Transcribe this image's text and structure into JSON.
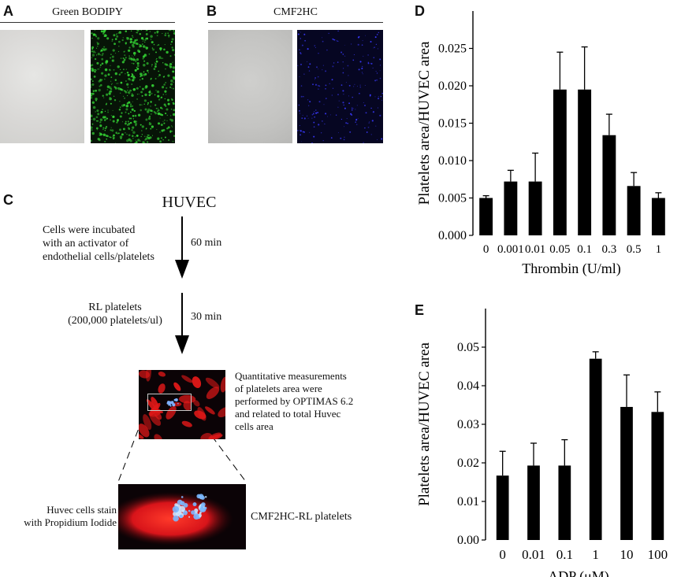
{
  "panels": {
    "A": {
      "letter": "A",
      "title": "Green BODIPY"
    },
    "B": {
      "letter": "B",
      "title": "CMF2HC"
    },
    "C": {
      "letter": "C"
    },
    "D": {
      "letter": "D"
    },
    "E": {
      "letter": "E"
    }
  },
  "flow": {
    "start": "HUVEC",
    "step1_text": [
      "Cells were incubated",
      "with an activator of",
      "endothelial cells/platelets"
    ],
    "step1_time": "60 min",
    "step2_text": [
      "RL platelets",
      "(200,000 platelets/ul)"
    ],
    "step2_time": "30 min",
    "measure_text": [
      "Quantitative measurements",
      "of platelets area were",
      "performed by OPTIMAS 6.2",
      "and related to total Huvec",
      "cells area"
    ],
    "left_label": [
      "Huvec cells stain",
      "with Propidium Iodide"
    ],
    "right_label": "CMF2HC-RL platelets"
  },
  "colors": {
    "bar": "#000000",
    "green_fluor": "#33cc33",
    "blue_fluor": "#3a3aff",
    "red_fluor": "#e01818"
  },
  "chart_data": [
    {
      "type": "bar",
      "panel": "D",
      "categories": [
        "0",
        "0.001",
        "0.01",
        "0.05",
        "0.1",
        "0.3",
        "0.5",
        "1"
      ],
      "values": [
        0.005,
        0.0072,
        0.0072,
        0.0195,
        0.0195,
        0.0134,
        0.0066,
        0.005
      ],
      "errors": [
        0.0003,
        0.0015,
        0.0038,
        0.005,
        0.0057,
        0.0028,
        0.0018,
        0.0007
      ],
      "yticks": [
        "0.000",
        "0.005",
        "0.010",
        "0.015",
        "0.020",
        "0.025"
      ],
      "ylim": [
        0,
        0.03
      ],
      "xlabel": "Thrombin (U/ml)",
      "ylabel": "Platelets area/HUVEC area"
    },
    {
      "type": "bar",
      "panel": "E",
      "categories": [
        "0",
        "0.01",
        "0.1",
        "1",
        "10",
        "100"
      ],
      "values": [
        0.0167,
        0.0193,
        0.0193,
        0.047,
        0.0345,
        0.0332
      ],
      "errors": [
        0.0063,
        0.0058,
        0.0067,
        0.0018,
        0.0083,
        0.0052
      ],
      "yticks": [
        "0.00",
        "0.01",
        "0.02",
        "0.03",
        "0.04",
        "0.05"
      ],
      "ylim": [
        0,
        0.06
      ],
      "xlabel": "ADP (μM)",
      "ylabel": "Platelets area/HUVEC area"
    }
  ]
}
